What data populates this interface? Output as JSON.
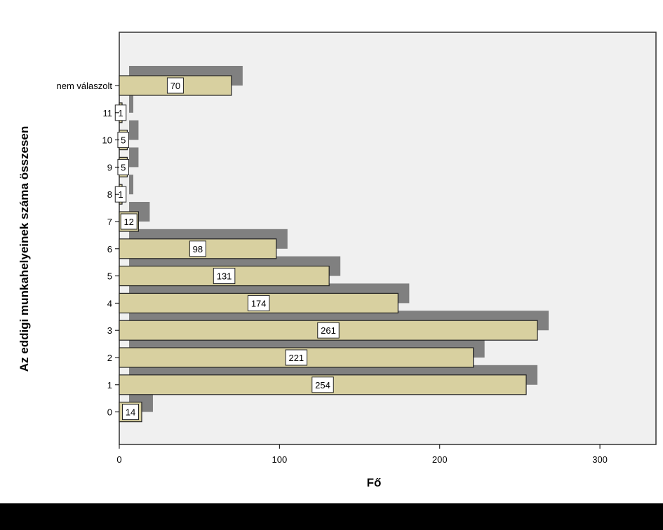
{
  "chart_data": {
    "type": "bar",
    "orientation": "horizontal",
    "categories": [
      "nem válaszolt",
      "11",
      "10",
      "9",
      "8",
      "7",
      "6",
      "5",
      "4",
      "3",
      "2",
      "1",
      "0"
    ],
    "values": [
      70,
      1,
      5,
      5,
      1,
      12,
      98,
      131,
      174,
      261,
      221,
      254,
      14
    ],
    "value_labels": [
      "70",
      "1",
      "5",
      "5",
      "1",
      "12",
      "98",
      "131",
      "174",
      "261",
      "221",
      "254",
      "14"
    ],
    "xlabel": "Fő",
    "ylabel": "Az eddigi munkahelyeinek száma összesen",
    "xlim": [
      0,
      335
    ],
    "xticks": [
      "0",
      "100",
      "200",
      "300"
    ],
    "grid": false,
    "colors": {
      "bar": "#d8d0a0",
      "shadow": "#808080",
      "plot_bg": "#f0f0f0"
    }
  }
}
